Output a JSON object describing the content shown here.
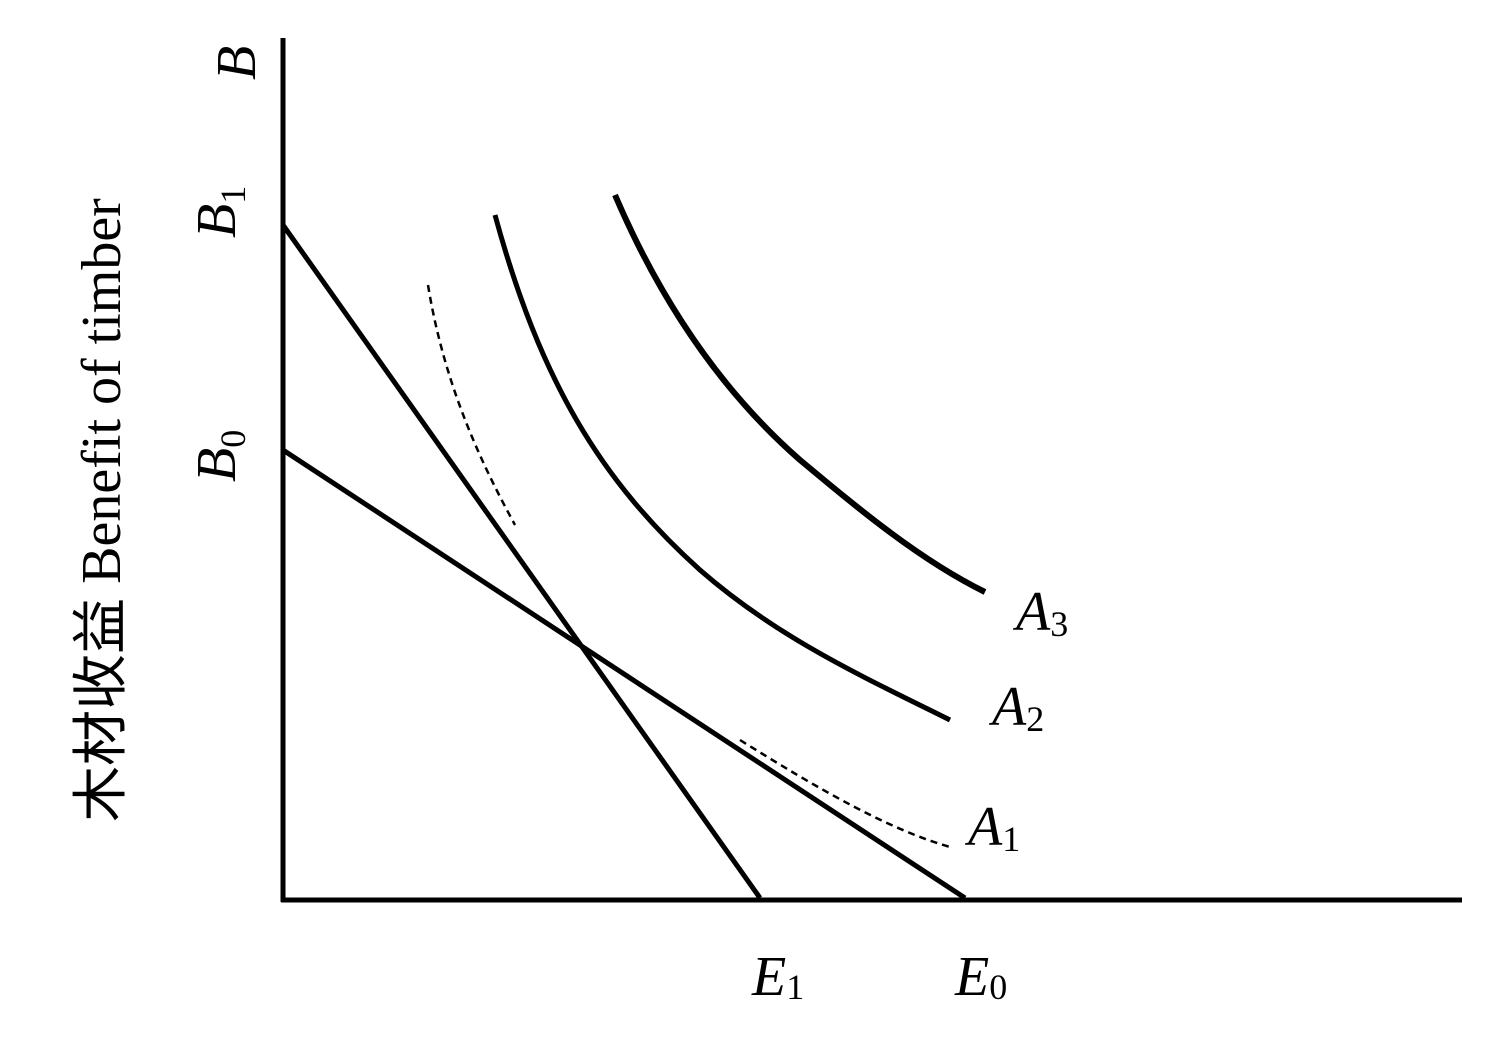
{
  "y_axis_label": "木材收益 Benefit of timber",
  "y_labels": [
    {
      "letter": "B"
    },
    {
      "letter": "B",
      "sub": "1"
    },
    {
      "letter": "B",
      "sub": "0"
    }
  ],
  "curve_labels": [
    {
      "letter": "A",
      "sub": "3"
    },
    {
      "letter": "A",
      "sub": "2"
    },
    {
      "letter": "A",
      "sub": "1"
    }
  ],
  "x_labels": [
    {
      "letter": "E",
      "sub": "1"
    },
    {
      "letter": "E",
      "sub": "0"
    }
  ]
}
